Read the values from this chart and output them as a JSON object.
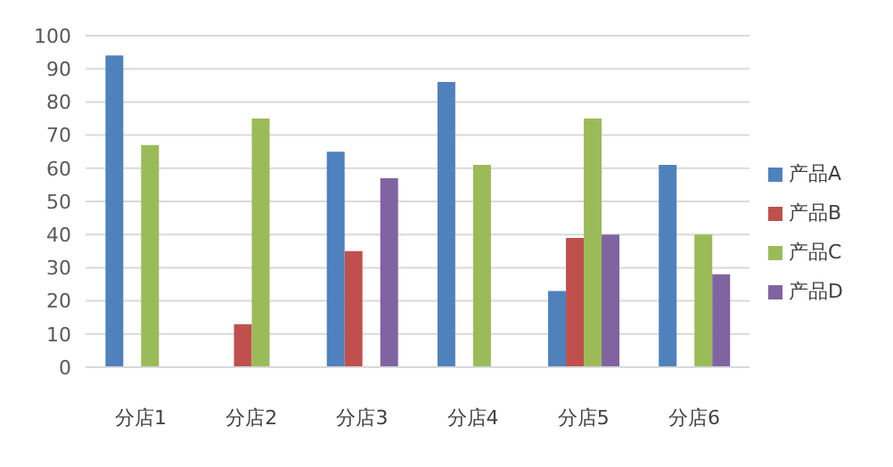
{
  "chart_data": {
    "type": "bar",
    "categories": [
      "分店1",
      "分店2",
      "分店3",
      "分店4",
      "分店5",
      "分店6"
    ],
    "series": [
      {
        "name": "产品A",
        "color": "#4f81bd",
        "values": [
          94,
          null,
          65,
          86,
          23,
          61
        ]
      },
      {
        "name": "产品B",
        "color": "#c0504d",
        "values": [
          null,
          13,
          35,
          null,
          39,
          null
        ]
      },
      {
        "name": "产品C",
        "color": "#9bbb59",
        "values": [
          67,
          75,
          null,
          61,
          75,
          40
        ]
      },
      {
        "name": "产品D",
        "color": "#8064a2",
        "values": [
          null,
          null,
          57,
          null,
          40,
          28
        ]
      }
    ],
    "ylim": [
      0,
      100
    ],
    "yticks": [
      0,
      10,
      20,
      30,
      40,
      50,
      60,
      70,
      80,
      90,
      100
    ],
    "grid": "y",
    "legend": "right"
  }
}
